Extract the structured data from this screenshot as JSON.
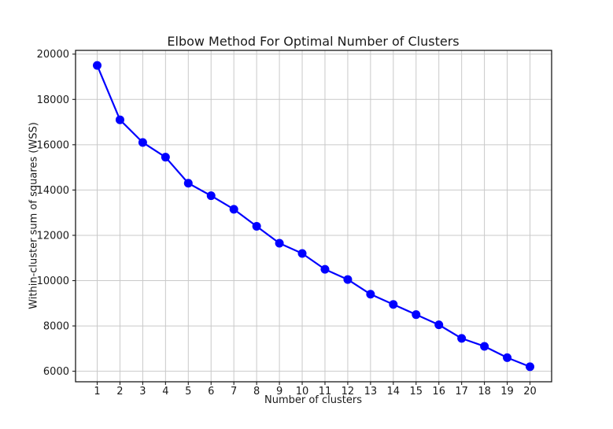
{
  "figure": {
    "background_color": "#ffffff",
    "text_color": "#1a1a1a"
  },
  "chart_data": {
    "type": "line",
    "title": "Elbow Method For Optimal Number of Clusters",
    "xlabel": "Number of clusters",
    "ylabel": "Within-cluster sum of squares (WSS)",
    "x": [
      1,
      2,
      3,
      4,
      5,
      6,
      7,
      8,
      9,
      10,
      11,
      12,
      13,
      14,
      15,
      16,
      17,
      18,
      19,
      20
    ],
    "y": [
      19500,
      17100,
      16100,
      15450,
      14300,
      13750,
      13150,
      12400,
      11650,
      11200,
      10500,
      10050,
      9400,
      8950,
      8500,
      8050,
      7450,
      7100,
      6600,
      6200
    ],
    "x_ticks": [
      1,
      2,
      3,
      4,
      5,
      6,
      7,
      8,
      9,
      10,
      11,
      12,
      13,
      14,
      15,
      16,
      17,
      18,
      19,
      20
    ],
    "y_ticks": [
      6000,
      8000,
      10000,
      12000,
      14000,
      16000,
      18000,
      20000
    ],
    "xlim": [
      0.05,
      20.95
    ],
    "ylim": [
      5535,
      20165
    ],
    "grid": true,
    "legend": false,
    "line_color": "#0000ff",
    "marker": "circle",
    "marker_color": "#0000ff",
    "grid_color": "#c9c9c9",
    "spine_color": "#1a1a1a",
    "tick_label_color": "#1a1a1a"
  }
}
